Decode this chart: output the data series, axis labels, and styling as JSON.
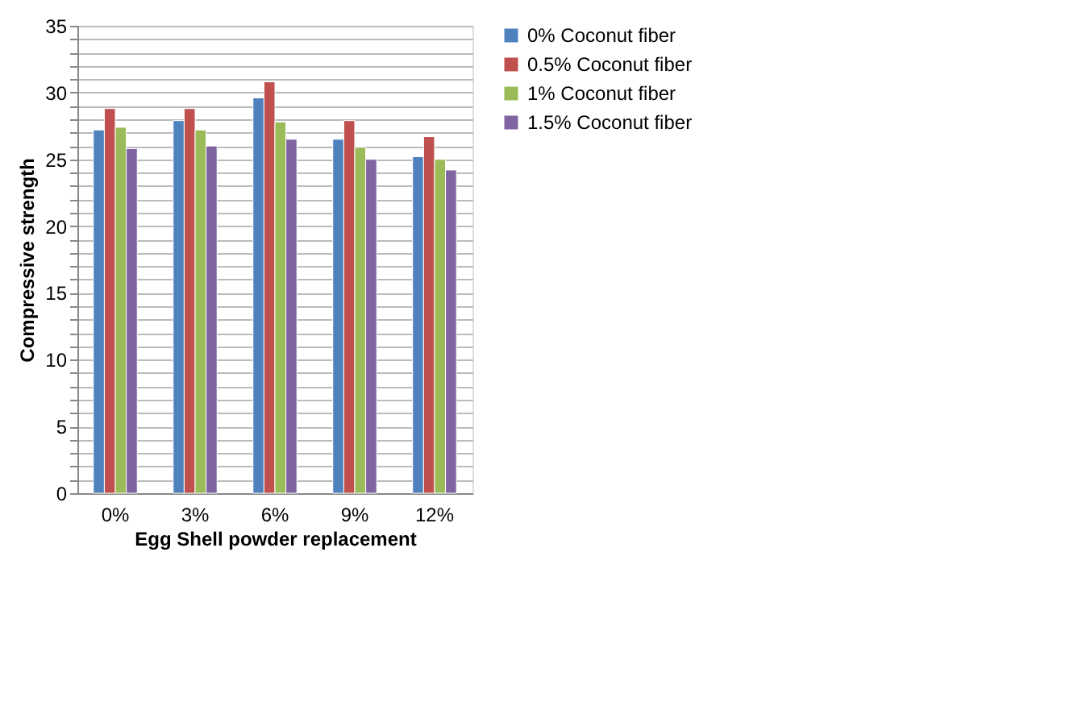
{
  "chart_data": {
    "type": "bar",
    "categories": [
      "0%",
      "3%",
      "6%",
      "9%",
      "12%"
    ],
    "xlabel": "Egg Shell powder replacement",
    "ylabel": "Compressive strength",
    "series": [
      {
        "name": "0% Coconut fiber",
        "color": "#4f81bd",
        "values": [
          27.2,
          27.9,
          29.6,
          26.5,
          25.2
        ]
      },
      {
        "name": "0.5% Coconut fiber",
        "color": "#c0504d",
        "values": [
          28.8,
          28.8,
          30.8,
          27.9,
          26.7
        ]
      },
      {
        "name": "1% Coconut fiber",
        "color": "#9bbb59",
        "values": [
          27.4,
          27.2,
          27.8,
          25.9,
          25.0
        ]
      },
      {
        "name": "1.5% Coconut fiber",
        "color": "#8064a2",
        "values": [
          25.8,
          26.0,
          26.5,
          25.0,
          24.2
        ]
      }
    ],
    "ylim": [
      0,
      35
    ],
    "yticks": [
      0,
      {
        "value": 1,
        "label": null
      },
      {
        "value": 2,
        "label": null
      },
      {
        "value": 3,
        "label": null
      },
      {
        "value": 4,
        "label": null
      },
      5,
      {
        "value": 6,
        "label": null
      },
      {
        "value": 7,
        "label": null
      },
      {
        "value": 8,
        "label": null
      },
      {
        "value": 9,
        "label": null
      },
      10,
      {
        "value": 11,
        "label": null
      },
      {
        "value": 12,
        "label": null
      },
      {
        "value": 13,
        "label": null
      },
      {
        "value": 14,
        "label": null
      },
      15,
      {
        "value": 16,
        "label": null
      },
      {
        "value": 17,
        "label": null
      },
      {
        "value": 18,
        "label": null
      },
      {
        "value": 19,
        "label": null
      },
      20,
      {
        "value": 21,
        "label": null
      },
      {
        "value": 22,
        "label": null
      },
      {
        "value": 23,
        "label": null
      },
      {
        "value": 24,
        "label": null
      },
      25,
      {
        "value": 26,
        "label": null
      },
      {
        "value": 27,
        "label": null
      },
      {
        "value": 28,
        "label": null
      },
      {
        "value": 29,
        "label": null
      },
      30,
      {
        "value": 31,
        "label": null
      },
      {
        "value": 32,
        "label": null
      },
      {
        "value": 33,
        "label": null
      },
      {
        "value": 34,
        "label": null
      },
      35
    ],
    "grid": "y",
    "legend": "right"
  }
}
